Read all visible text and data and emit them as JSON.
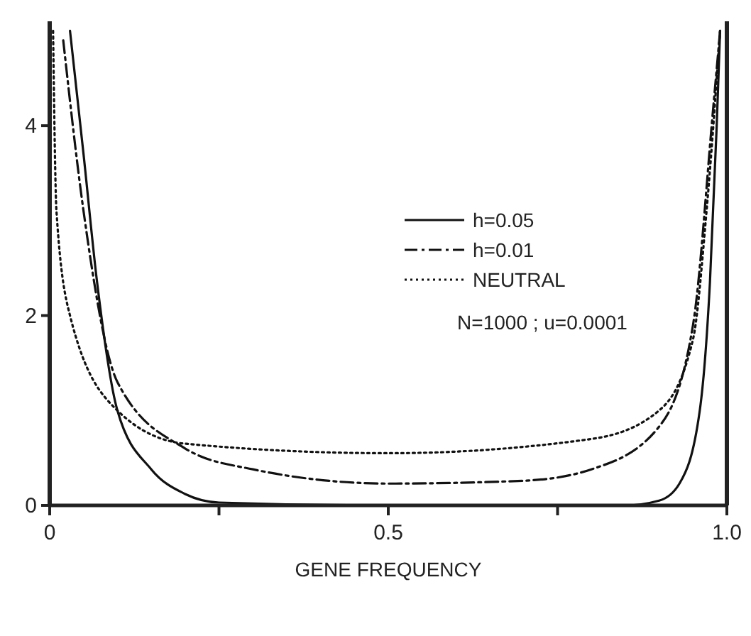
{
  "chart_data": {
    "type": "line",
    "xlabel": "GENE FREQUENCY",
    "xlim": [
      0,
      1
    ],
    "ylim": [
      0,
      5.1
    ],
    "xticks": [
      0,
      {
        "value": 0.25,
        "label": null
      },
      0.5,
      {
        "value": 0.75,
        "label": null
      },
      {
        "value": 1,
        "label": "1.0"
      }
    ],
    "yticks": [
      0,
      2,
      4
    ],
    "grid": false,
    "legend": "top right",
    "annotations": [
      "N=1000 ; u=0.0001"
    ],
    "series": [
      {
        "name": "h=0.05",
        "color": "#111111",
        "line_style": "solid",
        "x": [
          0.03,
          0.05,
          0.07,
          0.1,
          0.15,
          0.2,
          0.25,
          0.5,
          0.85,
          0.9,
          0.93,
          0.96,
          0.975,
          0.985,
          0.99
        ],
        "values": [
          5.0,
          3.7,
          2.35,
          1.0,
          0.38,
          0.12,
          0.03,
          0,
          0,
          0.05,
          0.23,
          1.0,
          2.35,
          4.0,
          5.0
        ]
      },
      {
        "name": "h=0.01",
        "color": "#111111",
        "line_style": "dashdot",
        "x": [
          0.02,
          0.05,
          0.1,
          0.2,
          0.3,
          0.5,
          0.7,
          0.8,
          0.9,
          0.95,
          0.98,
          0.99
        ],
        "values": [
          4.9,
          3.1,
          1.3,
          0.6,
          0.38,
          0.23,
          0.26,
          0.38,
          0.83,
          1.9,
          4.2,
          5.0
        ]
      },
      {
        "name": "NEUTRAL",
        "color": "#111111",
        "line_style": "dotted",
        "x": [
          0.005,
          0.01,
          0.03,
          0.1,
          0.2,
          0.5,
          0.8,
          0.9,
          0.95,
          0.97,
          0.99
        ],
        "values": [
          5.0,
          3.1,
          2.0,
          1.0,
          0.65,
          0.55,
          0.7,
          1.0,
          1.75,
          3.1,
          5.0
        ]
      }
    ]
  }
}
